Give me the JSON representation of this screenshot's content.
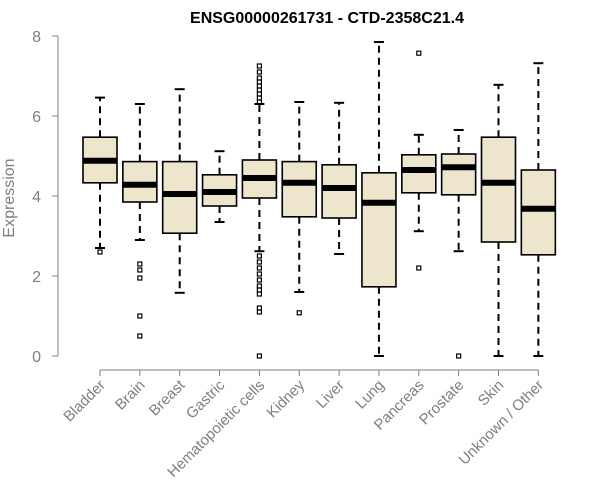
{
  "chart_data": {
    "type": "boxplot",
    "title": "ENSG00000261731 - CTD-2358C21.4",
    "xlabel": "",
    "ylabel": "Expression",
    "ylim": [
      0,
      8
    ],
    "yticks": [
      0,
      2,
      4,
      6,
      8
    ],
    "colors": {
      "box_fill": "#ede6cc",
      "line": "#000000",
      "axis": "#7f7f7f",
      "tick_text": "#7f7f7f"
    },
    "categories": [
      "Bladder",
      "Brain",
      "Breast",
      "Gastric",
      "Hematopoietic cells",
      "Kidney",
      "Liver",
      "Lung",
      "Pancreas",
      "Prostate",
      "Skin",
      "Unknown / Other"
    ],
    "boxes": [
      {
        "name": "Bladder",
        "whisker_low": 2.7,
        "q1": 4.33,
        "median": 4.88,
        "q3": 5.47,
        "whisker_high": 6.46,
        "outliers": [
          2.6
        ]
      },
      {
        "name": "Brain",
        "whisker_low": 2.9,
        "q1": 3.85,
        "median": 4.28,
        "q3": 4.86,
        "whisker_high": 6.3,
        "outliers": [
          2.3,
          2.15,
          1.95,
          1.0,
          0.5
        ]
      },
      {
        "name": "Breast",
        "whisker_low": 1.58,
        "q1": 3.07,
        "median": 4.05,
        "q3": 4.86,
        "whisker_high": 6.67,
        "outliers": []
      },
      {
        "name": "Gastric",
        "whisker_low": 3.35,
        "q1": 3.75,
        "median": 4.1,
        "q3": 4.53,
        "whisker_high": 5.12,
        "outliers": []
      },
      {
        "name": "Hematopoietic cells",
        "whisker_low": 2.62,
        "q1": 3.95,
        "median": 4.45,
        "q3": 4.9,
        "whisker_high": 6.3,
        "outliers": [
          7.25,
          7.1,
          6.95,
          6.85,
          6.75,
          6.65,
          6.55,
          6.45,
          6.35,
          2.5,
          2.35,
          2.2,
          2.05,
          1.9,
          1.75,
          1.65,
          1.55,
          1.2,
          1.1,
          0.0
        ]
      },
      {
        "name": "Kidney",
        "whisker_low": 1.6,
        "q1": 3.48,
        "median": 4.33,
        "q3": 4.86,
        "whisker_high": 6.35,
        "outliers": [
          1.08
        ]
      },
      {
        "name": "Liver",
        "whisker_low": 2.55,
        "q1": 3.45,
        "median": 4.2,
        "q3": 4.78,
        "whisker_high": 6.33,
        "outliers": []
      },
      {
        "name": "Lung",
        "whisker_low": 0.0,
        "q1": 1.73,
        "median": 3.83,
        "q3": 4.58,
        "whisker_high": 7.85,
        "outliers": []
      },
      {
        "name": "Pancreas",
        "whisker_low": 3.12,
        "q1": 4.08,
        "median": 4.65,
        "q3": 5.03,
        "whisker_high": 5.53,
        "outliers": [
          7.57,
          2.2
        ]
      },
      {
        "name": "Prostate",
        "whisker_low": 2.62,
        "q1": 4.03,
        "median": 4.72,
        "q3": 5.05,
        "whisker_high": 5.65,
        "outliers": [
          0.0
        ]
      },
      {
        "name": "Skin",
        "whisker_low": 0.0,
        "q1": 2.85,
        "median": 4.33,
        "q3": 5.47,
        "whisker_high": 6.78,
        "outliers": []
      },
      {
        "name": "Unknown / Other",
        "whisker_low": 0.0,
        "q1": 2.53,
        "median": 3.68,
        "q3": 4.65,
        "whisker_high": 7.32,
        "outliers": []
      }
    ]
  }
}
